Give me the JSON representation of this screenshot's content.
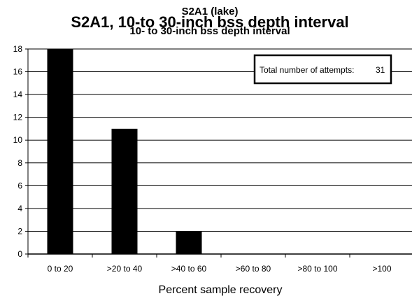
{
  "chart_data": {
    "type": "bar",
    "title": "S2A1, 10-to 30-inch bss depth interval",
    "subtitle_line1": "S2A1 (lake)",
    "subtitle_line2": "10- to 30-inch bss depth interval",
    "xlabel": "Percent sample recovery",
    "ylabel": "",
    "categories": [
      "0 to 20",
      ">20 to 40",
      ">40 to 60",
      ">60 to 80",
      ">80 to 100",
      ">100"
    ],
    "values": [
      18,
      11,
      2,
      0,
      0,
      0
    ],
    "ylim": [
      0,
      18
    ],
    "yticks": [
      0,
      2,
      4,
      6,
      8,
      10,
      12,
      14,
      16,
      18
    ],
    "grid": true,
    "legend_box": {
      "label": "Total number of attempts:",
      "value": "31",
      "placement": "top-right"
    },
    "colors": {
      "bar": "#000000",
      "background": "#ffffff",
      "grid": "#000000"
    }
  }
}
